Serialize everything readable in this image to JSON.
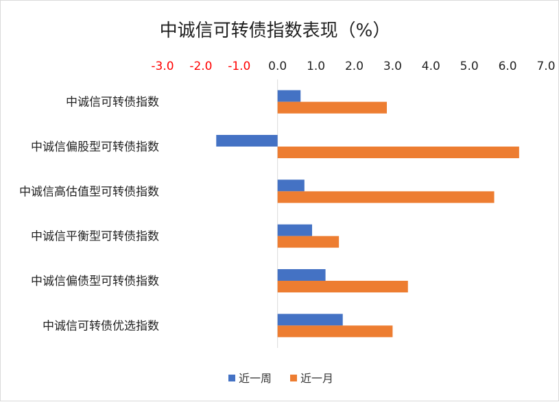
{
  "chart_data": {
    "type": "bar",
    "orientation": "horizontal",
    "title": "中诚信可转债指数表现（%）",
    "categories": [
      "中诚信可转债指数",
      "中诚信偏股型可转债指数",
      "中诚信高估值型可转债指数",
      "中诚信平衡型可转债指数",
      "中诚信偏债型可转债指数",
      "中诚信可转债优选指数"
    ],
    "series": [
      {
        "name": "近一周",
        "color": "#4472C4",
        "values": [
          0.6,
          -1.6,
          0.7,
          0.9,
          1.25,
          1.7
        ]
      },
      {
        "name": "近一月",
        "color": "#ED7D31",
        "values": [
          2.85,
          6.3,
          5.65,
          1.6,
          3.4,
          3.0
        ]
      }
    ],
    "xlim": [
      -3.0,
      7.0
    ],
    "xticks": [
      "-3.0",
      "-2.0",
      "-1.0",
      "0.0",
      "1.0",
      "2.0",
      "3.0",
      "4.0",
      "5.0",
      "6.0",
      "7.0"
    ],
    "negative_tick_color": "#FF0000",
    "positive_tick_color": "#222222",
    "legend_position": "bottom"
  }
}
